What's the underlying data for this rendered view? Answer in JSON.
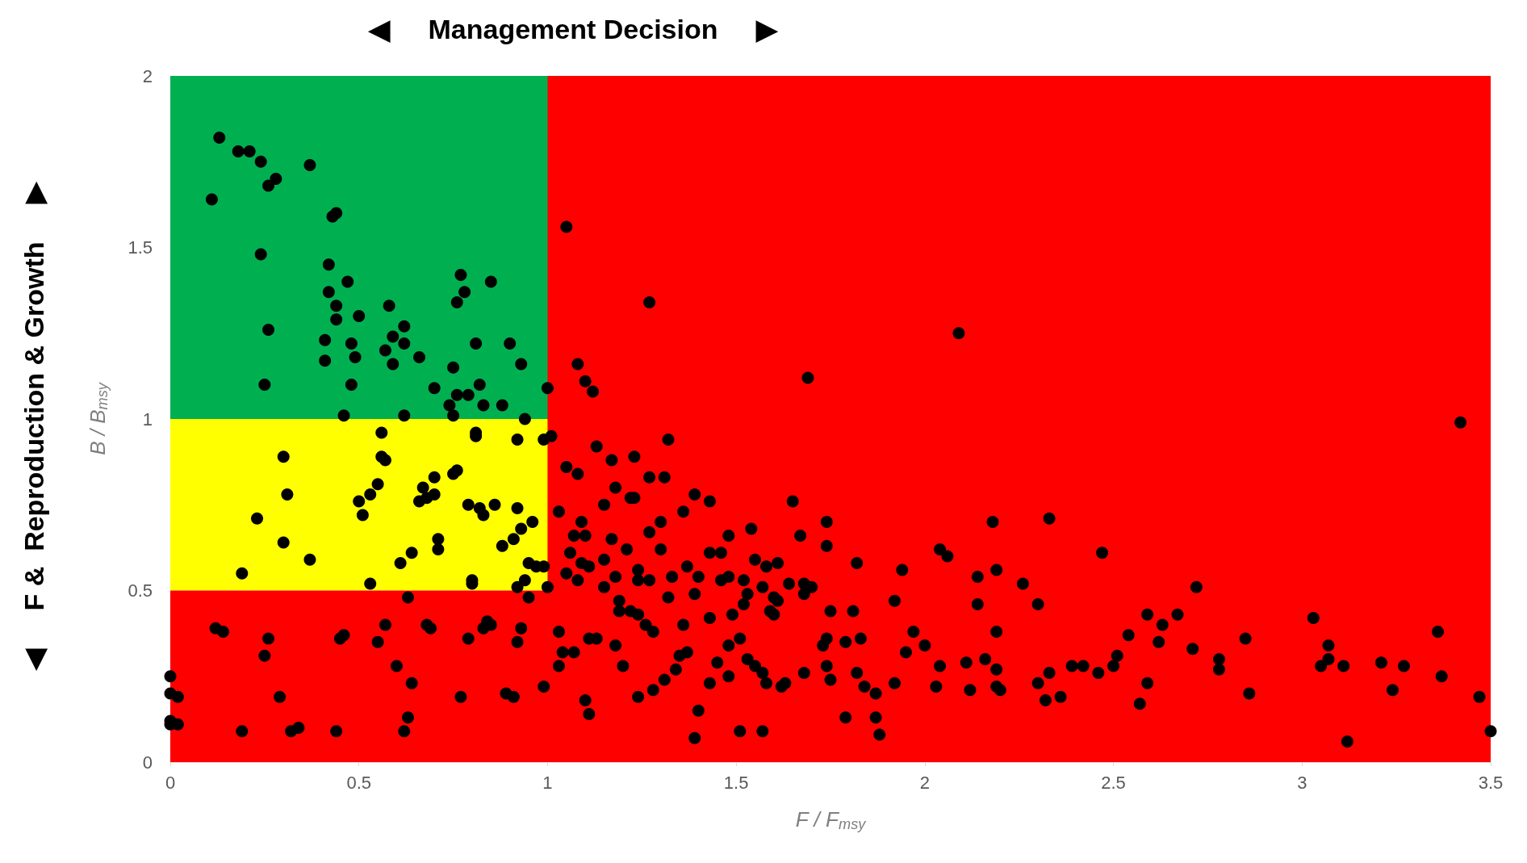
{
  "chart_data": {
    "type": "scatter",
    "xlabel": "F / F$_{msy}$",
    "ylabel": "B / B$_{msy}$",
    "annotations": [
      "◀     Management Decision     ▶",
      "◀     F &  Reproduction & Growth     ▶"
    ],
    "xlim": [
      0,
      3.5
    ],
    "xticks": [
      0,
      0.5,
      1,
      1.5,
      2,
      2.5,
      3,
      3.5
    ],
    "ylim": [
      0,
      2
    ],
    "yticks": [
      0,
      0.5,
      1,
      1.5,
      2
    ],
    "grid": false,
    "marker": "circle",
    "bands": [
      {
        "axis": "y",
        "from": 0.5,
        "to": 1,
        "color": "#ffff00"
      },
      {
        "axis": "y",
        "from": 1,
        "to": 2,
        "color": "#00b050"
      },
      {
        "axis": "y",
        "from": 0,
        "to": 0.5,
        "color": "#ff0000"
      },
      {
        "axis": "x",
        "from": 1,
        "to": 3.5,
        "color": "#ff0000"
      }
    ],
    "series": [
      {
        "color": "#000000",
        "x": [
          0.13,
          0.18,
          0.21,
          0.24,
          0.11,
          0.28,
          0.26,
          0.37,
          0.24,
          0.44,
          0.43,
          0.42,
          0.47,
          0.42,
          0.44,
          0.5,
          0.44,
          0.58,
          0.62,
          0.41,
          0.48,
          0.59,
          0.62,
          0.57,
          0.26,
          0.41,
          0.49,
          0.59,
          0.66,
          0.25,
          0.48,
          0.77,
          0.76,
          0.78,
          0.85,
          0.81,
          0.9,
          0.93,
          0.75,
          0.7,
          0.82,
          0.79,
          0.76,
          0.74,
          0.83,
          0.88,
          0.75,
          0.46,
          1.0,
          0.94,
          0.56,
          0.62,
          0.81,
          0.81,
          0.92,
          0.99,
          0.3,
          0.56,
          0.57,
          0.7,
          0.76,
          0.75,
          0.55,
          0.67,
          0.31,
          0.53,
          0.7,
          0.68,
          0.66,
          0.5,
          0.79,
          0.86,
          0.23,
          0.51,
          0.83,
          0.82,
          0.92,
          0.96,
          0.93,
          0.91,
          0.88,
          0.71,
          0.71,
          0.3,
          0.37,
          0.61,
          0.64,
          0.95,
          0.97,
          0.99,
          0.19,
          0.94,
          0.8,
          0.8,
          0.53,
          0.92,
          1.0,
          0.0,
          0.0,
          0.02,
          0.0,
          0.0,
          0.02,
          0.12,
          0.14,
          0.19,
          0.25,
          0.26,
          0.29,
          0.32,
          0.34,
          0.44,
          0.45,
          0.46,
          0.55,
          0.57,
          0.6,
          0.62,
          0.63,
          0.64,
          0.63,
          0.68,
          0.69,
          0.77,
          0.79,
          0.84,
          0.83,
          0.85,
          0.89,
          0.91,
          0.92,
          0.93,
          0.95,
          0.99,
          1.05,
          1.27,
          1.08,
          1.1,
          1.12,
          1.01,
          1.13,
          1.05,
          1.08,
          1.17,
          1.23,
          1.32,
          1.27,
          1.31,
          1.18,
          1.03,
          1.15,
          1.22,
          1.23,
          1.36,
          1.39,
          1.43,
          1.3,
          1.09,
          1.07,
          1.1,
          1.17,
          1.27,
          1.48,
          1.54,
          1.65,
          1.74,
          1.67,
          1.06,
          1.09,
          1.15,
          1.21,
          1.3,
          1.43,
          1.46,
          1.61,
          1.58,
          1.55,
          1.37,
          1.24,
          1.18,
          1.11,
          1.05,
          1.08,
          1.15,
          1.24,
          1.27,
          1.33,
          1.4,
          1.48,
          1.52,
          1.46,
          1.57,
          1.64,
          1.68,
          1.7,
          1.68,
          1.6,
          1.53,
          1.39,
          1.32,
          1.19,
          1.19,
          1.22,
          1.24,
          1.26,
          1.28,
          1.36,
          1.43,
          1.49,
          1.52,
          1.59,
          1.6,
          1.61,
          1.75,
          1.81,
          1.82,
          1.74,
          1.69,
          2.09,
          1.92,
          1.94,
          2.04,
          2.06,
          2.18,
          2.19,
          2.14,
          2.14,
          2.19,
          2.26,
          2.3,
          2.33,
          2.47,
          2.72,
          3.42,
          3.03,
          3.07,
          3.07,
          3.05,
          3.11,
          3.21,
          3.27,
          3.36,
          3.37,
          3.47,
          3.5,
          3.24,
          3.12,
          2.85,
          2.86,
          2.78,
          2.78,
          2.71,
          2.67,
          2.63,
          2.62,
          2.59,
          2.59,
          2.57,
          2.54,
          2.51,
          2.5,
          2.46,
          2.42,
          2.39,
          2.36,
          2.33,
          2.32,
          2.3,
          2.2,
          2.19,
          2.19,
          2.16,
          2.11,
          2.12,
          2.03,
          2.04,
          2.0,
          1.97,
          1.95,
          1.92,
          1.88,
          1.87,
          1.87,
          1.84,
          1.83,
          1.82,
          1.79,
          1.79,
          1.75,
          1.74,
          1.73,
          1.74,
          1.68,
          1.63,
          1.62,
          1.58,
          1.57,
          1.55,
          1.53,
          1.57,
          1.51,
          1.4,
          1.39,
          1.43,
          1.45,
          1.48,
          1.48,
          1.51,
          1.37,
          1.35,
          1.34,
          1.31,
          1.28,
          1.24,
          1.2,
          1.18,
          1.13,
          1.11,
          1.1,
          1.11,
          1.07,
          1.04,
          1.03,
          1.03
        ],
        "values": [
          1.82,
          1.78,
          1.78,
          1.75,
          1.64,
          1.7,
          1.68,
          1.74,
          1.48,
          1.6,
          1.59,
          1.45,
          1.4,
          1.37,
          1.33,
          1.3,
          1.29,
          1.33,
          1.27,
          1.23,
          1.22,
          1.24,
          1.22,
          1.2,
          1.26,
          1.17,
          1.18,
          1.16,
          1.18,
          1.1,
          1.1,
          1.42,
          1.34,
          1.37,
          1.4,
          1.22,
          1.22,
          1.16,
          1.15,
          1.09,
          1.1,
          1.07,
          1.07,
          1.04,
          1.04,
          1.04,
          1.01,
          1.01,
          1.09,
          1.0,
          0.96,
          1.01,
          0.96,
          0.95,
          0.94,
          0.94,
          0.89,
          0.89,
          0.88,
          0.83,
          0.85,
          0.84,
          0.81,
          0.8,
          0.78,
          0.78,
          0.78,
          0.77,
          0.76,
          0.76,
          0.75,
          0.75,
          0.71,
          0.72,
          0.72,
          0.74,
          0.74,
          0.7,
          0.68,
          0.65,
          0.63,
          0.65,
          0.62,
          0.64,
          0.59,
          0.58,
          0.61,
          0.58,
          0.57,
          0.57,
          0.55,
          0.53,
          0.53,
          0.52,
          0.52,
          0.51,
          0.51,
          0.25,
          0.2,
          0.19,
          0.12,
          0.11,
          0.11,
          0.39,
          0.38,
          0.09,
          0.31,
          0.36,
          0.19,
          0.09,
          0.1,
          0.09,
          0.36,
          0.37,
          0.35,
          0.4,
          0.28,
          0.09,
          0.13,
          0.23,
          0.48,
          0.4,
          0.39,
          0.19,
          0.36,
          0.41,
          0.39,
          0.4,
          0.2,
          0.19,
          0.35,
          0.39,
          0.48,
          0.22,
          1.56,
          1.34,
          1.16,
          1.11,
          1.08,
          0.95,
          0.92,
          0.86,
          0.84,
          0.88,
          0.89,
          0.94,
          0.83,
          0.83,
          0.8,
          0.73,
          0.75,
          0.77,
          0.77,
          0.73,
          0.78,
          0.76,
          0.7,
          0.7,
          0.66,
          0.66,
          0.65,
          0.67,
          0.66,
          0.68,
          0.76,
          0.63,
          0.66,
          0.61,
          0.58,
          0.59,
          0.62,
          0.62,
          0.61,
          0.61,
          0.58,
          0.57,
          0.59,
          0.57,
          0.56,
          0.54,
          0.57,
          0.55,
          0.53,
          0.51,
          0.53,
          0.53,
          0.54,
          0.54,
          0.54,
          0.53,
          0.53,
          0.51,
          0.52,
          0.52,
          0.51,
          0.49,
          0.48,
          0.49,
          0.49,
          0.48,
          0.47,
          0.44,
          0.44,
          0.43,
          0.4,
          0.38,
          0.4,
          0.42,
          0.43,
          0.46,
          0.44,
          0.43,
          0.47,
          0.44,
          0.44,
          0.58,
          0.7,
          1.12,
          1.25,
          0.47,
          0.56,
          0.62,
          0.6,
          0.7,
          0.56,
          0.54,
          0.46,
          0.38,
          0.52,
          0.46,
          0.71,
          0.61,
          0.51,
          0.99,
          0.42,
          0.34,
          0.3,
          0.28,
          0.28,
          0.29,
          0.28,
          0.38,
          0.25,
          0.19,
          0.09,
          0.21,
          0.06,
          0.36,
          0.2,
          0.3,
          0.27,
          0.33,
          0.43,
          0.4,
          0.35,
          0.43,
          0.23,
          0.17,
          0.37,
          0.31,
          0.28,
          0.26,
          0.28,
          0.28,
          0.19,
          0.26,
          0.18,
          0.23,
          0.21,
          0.22,
          0.27,
          0.3,
          0.29,
          0.21,
          0.22,
          0.28,
          0.34,
          0.38,
          0.32,
          0.23,
          0.08,
          0.13,
          0.2,
          0.22,
          0.36,
          0.26,
          0.35,
          0.13,
          0.24,
          0.28,
          0.34,
          0.36,
          0.26,
          0.23,
          0.22,
          0.23,
          0.26,
          0.28,
          0.3,
          0.09,
          0.09,
          0.15,
          0.07,
          0.23,
          0.29,
          0.34,
          0.25,
          0.36,
          0.32,
          0.31,
          0.27,
          0.24,
          0.21,
          0.19,
          0.28,
          0.34,
          0.36,
          0.36,
          0.18,
          0.14,
          0.32,
          0.32,
          0.28,
          0.38
        ]
      }
    ]
  }
}
